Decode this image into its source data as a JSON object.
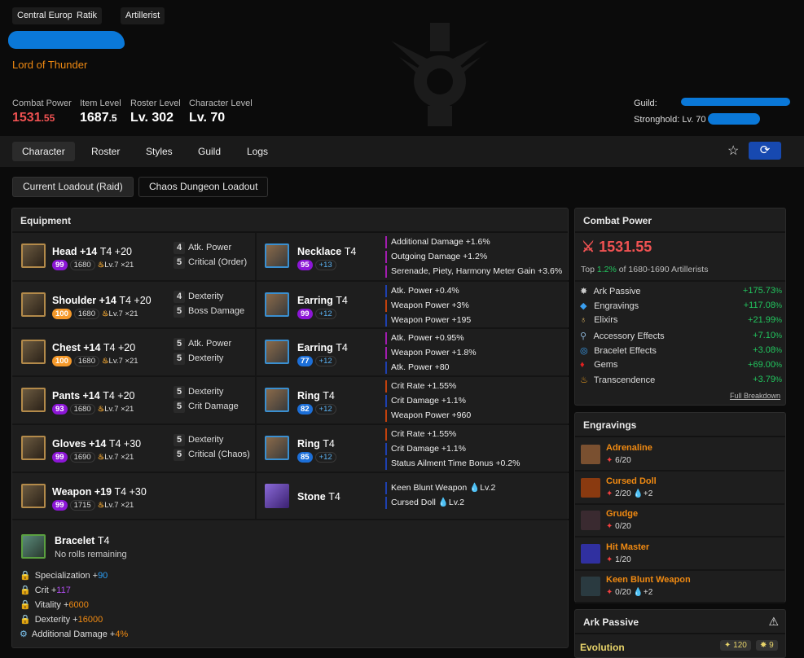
{
  "header": {
    "tags": [
      "Central Europe",
      "Ratik",
      "Artillerist"
    ],
    "title": "Lord of Thunder",
    "stats": [
      {
        "label": "Combat Power",
        "value": "1531",
        "decimal": ".55",
        "color": "#f05252"
      },
      {
        "label": "Item Level",
        "value": "1687",
        "decimal": ".5"
      },
      {
        "label": "Roster Level",
        "value": "Lv. 302",
        "decimal": ""
      },
      {
        "label": "Character Level",
        "value": "Lv. 70",
        "decimal": ""
      }
    ],
    "guild_label": "Guild:",
    "stronghold_label": "Stronghold:",
    "stronghold_level": "Lv. 70"
  },
  "nav": {
    "tabs": [
      "Character",
      "Roster",
      "Styles",
      "Guild",
      "Logs"
    ],
    "active": "Character",
    "favorite_icon": "star-icon",
    "refresh_icon": "refresh-icon"
  },
  "loadouts": [
    "Current Loadout (Raid)",
    "Chaos Dungeon Loadout"
  ],
  "equipment": {
    "title": "Equipment",
    "gear": [
      {
        "name": "Head +14",
        "tier": "T4 +20",
        "quality": "99",
        "qcolor": "#8c16d6",
        "ilvl": "1680",
        "trans": "Lv.7 ×21",
        "stats": [
          [
            "4",
            "Atk. Power"
          ],
          [
            "5",
            "Critical (Order)"
          ]
        ]
      },
      {
        "name": "Shoulder +14",
        "tier": "T4 +20",
        "quality": "100",
        "qcolor": "#f5992a",
        "ilvl": "1680",
        "trans": "Lv.7 ×21",
        "stats": [
          [
            "4",
            "Dexterity"
          ],
          [
            "5",
            "Boss Damage"
          ]
        ]
      },
      {
        "name": "Chest +14",
        "tier": "T4 +20",
        "quality": "100",
        "qcolor": "#f5992a",
        "ilvl": "1680",
        "trans": "Lv.7 ×21",
        "stats": [
          [
            "5",
            "Atk. Power"
          ],
          [
            "5",
            "Dexterity"
          ]
        ]
      },
      {
        "name": "Pants +14",
        "tier": "T4 +20",
        "quality": "93",
        "qcolor": "#8c16d6",
        "ilvl": "1680",
        "trans": "Lv.7 ×21",
        "stats": [
          [
            "5",
            "Dexterity"
          ],
          [
            "5",
            "Crit Damage"
          ]
        ]
      },
      {
        "name": "Gloves +14",
        "tier": "T4 +30",
        "quality": "99",
        "qcolor": "#8c16d6",
        "ilvl": "1690",
        "trans": "Lv.7 ×21",
        "stats": [
          [
            "5",
            "Dexterity"
          ],
          [
            "5",
            "Critical (Chaos)"
          ]
        ]
      },
      {
        "name": "Weapon +19",
        "tier": "T4 +30",
        "quality": "99",
        "qcolor": "#8c16d6",
        "ilvl": "1715",
        "trans": "Lv.7 ×21",
        "stats": []
      }
    ],
    "accessories": [
      {
        "name": "Necklace",
        "tier": "T4",
        "quality": "95",
        "qcolor": "#8c16d6",
        "bonus": "+13",
        "effects": [
          [
            "Additional Damage +1.6%",
            "#a21caf"
          ],
          [
            "Outgoing Damage +1.2%",
            "#a21caf"
          ],
          [
            "Serenade, Piety, Harmony Meter Gain +3.6%",
            "#a21caf"
          ]
        ]
      },
      {
        "name": "Earring",
        "tier": "T4",
        "quality": "99",
        "qcolor": "#8c16d6",
        "bonus": "+12",
        "effects": [
          [
            "Atk. Power +0.4%",
            "#1e40af"
          ],
          [
            "Weapon Power +3%",
            "#c2410c"
          ],
          [
            "Weapon Power +195",
            "#1e40af"
          ]
        ]
      },
      {
        "name": "Earring",
        "tier": "T4",
        "quality": "77",
        "qcolor": "#1c6fd8",
        "bonus": "+12",
        "effects": [
          [
            "Atk. Power +0.95%",
            "#a21caf"
          ],
          [
            "Weapon Power +1.8%",
            "#a21caf"
          ],
          [
            "Atk. Power +80",
            "#1e40af"
          ]
        ]
      },
      {
        "name": "Ring",
        "tier": "T4",
        "quality": "82",
        "qcolor": "#1c6fd8",
        "bonus": "+12",
        "effects": [
          [
            "Crit Rate +1.55%",
            "#c2410c"
          ],
          [
            "Crit Damage +1.1%",
            "#1e40af"
          ],
          [
            "Weapon Power +960",
            "#c2410c"
          ]
        ]
      },
      {
        "name": "Ring",
        "tier": "T4",
        "quality": "85",
        "qcolor": "#1c6fd8",
        "bonus": "+12",
        "effects": [
          [
            "Crit Rate +1.55%",
            "#c2410c"
          ],
          [
            "Crit Damage +1.1%",
            "#1e40af"
          ],
          [
            "Status Ailment Time Bonus +0.2%",
            "#1e40af"
          ]
        ]
      },
      {
        "name": "Stone",
        "tier": "T4",
        "effects": [
          [
            "Keen Blunt Weapon",
            "#1e40af",
            "Lv.2"
          ],
          [
            "Cursed Doll",
            "#1e40af",
            "Lv.2"
          ]
        ]
      }
    ],
    "bracelet": {
      "name": "Bracelet",
      "tier": "T4",
      "note": "No rolls remaining",
      "lines": [
        {
          "icon": "lock-icon",
          "label": "Specialization +",
          "value": "90",
          "color": "#2a9df4"
        },
        {
          "icon": "lock-icon",
          "label": "Crit +",
          "value": "117",
          "color": "#b04cf0"
        },
        {
          "icon": "lock-icon",
          "label": "Vitality +",
          "value": "6000",
          "color": "#f08a12"
        },
        {
          "icon": "lock-icon",
          "label": "Dexterity +",
          "value": "16000",
          "color": "#f08a12"
        },
        {
          "icon": "gear-icon",
          "label": "Additional Damage +",
          "value": "4%",
          "color": "#f08a12"
        }
      ]
    }
  },
  "combat_power": {
    "title": "Combat Power",
    "value": "1531.55",
    "rank_prefix": "Top ",
    "rank_pct": "1.2%",
    "rank_suffix": " of 1680-1690 Artillerists",
    "breakdown": [
      {
        "icon": "ark-passive-icon",
        "label": "Ark Passive",
        "value": "+175.73"
      },
      {
        "icon": "engraving-icon",
        "label": "Engravings",
        "value": "+117.08"
      },
      {
        "icon": "elixir-icon",
        "label": "Elixirs",
        "value": "+21.99"
      },
      {
        "icon": "accessory-icon",
        "label": "Accessory Effects",
        "value": "+7.10"
      },
      {
        "icon": "bracelet-icon",
        "label": "Bracelet Effects",
        "value": "+3.08"
      },
      {
        "icon": "gem-icon",
        "label": "Gems",
        "value": "+69.00"
      },
      {
        "icon": "transcendence-icon",
        "label": "Transcendence",
        "value": "+3.79"
      }
    ],
    "pct_sign": "%",
    "full_breakdown": "Full Breakdown"
  },
  "engravings": {
    "title": "Engravings",
    "items": [
      {
        "name": "Adrenaline",
        "level": "6/20",
        "stone": "",
        "color": "#7a5030"
      },
      {
        "name": "Cursed Doll",
        "level": "2/20",
        "stone": "+2",
        "color": "#8a3a10"
      },
      {
        "name": "Grudge",
        "level": "0/20",
        "stone": "",
        "color": "#3a2a30"
      },
      {
        "name": "Hit Master",
        "level": "1/20",
        "stone": "",
        "color": "#3030a0"
      },
      {
        "name": "Keen Blunt Weapon",
        "level": "0/20",
        "stone": "+2",
        "color": "#2a3a40"
      }
    ]
  },
  "ark_passive": {
    "title": "Ark Passive",
    "section": "Evolution",
    "points": "120",
    "nodes": "9"
  }
}
